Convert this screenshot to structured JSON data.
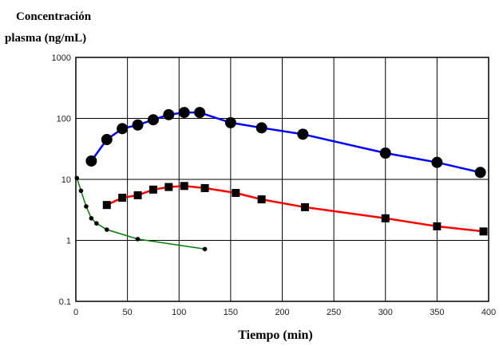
{
  "chart_data": {
    "type": "line",
    "title_line1": "Concentración",
    "title_line2": "plasma (ng/mL)",
    "xlabel": "Tiempo (min)",
    "ylabel": "Concentración plasma (ng/mL)",
    "xlim": [
      0,
      400
    ],
    "ylim": [
      0.1,
      1000
    ],
    "yscale": "log",
    "grid": true,
    "x_ticks": [
      0,
      50,
      100,
      150,
      200,
      250,
      300,
      350,
      400
    ],
    "x_tick_labels": [
      "0",
      "50",
      "100",
      "150",
      "200",
      "250",
      "300",
      "350",
      "400"
    ],
    "y_ticks": [
      0.1,
      1,
      10,
      100,
      1000
    ],
    "y_tick_labels": [
      "0.1",
      "1",
      "10",
      "100",
      "1000"
    ],
    "series": [
      {
        "color": "#0000ff",
        "marker": "circle",
        "x": [
          15,
          30,
          45,
          60,
          75,
          90,
          105,
          120,
          150,
          180,
          220,
          300,
          350,
          392
        ],
        "y": [
          20,
          45,
          68,
          78,
          95,
          115,
          125,
          125,
          85,
          70,
          55,
          27,
          19,
          13
        ]
      },
      {
        "color": "#ff0000",
        "marker": "square",
        "x": [
          30,
          45,
          60,
          75,
          90,
          105,
          125,
          155,
          180,
          222,
          300,
          350,
          395
        ],
        "y": [
          3.8,
          5.0,
          5.5,
          6.8,
          7.5,
          7.8,
          7.2,
          6.0,
          4.7,
          3.5,
          2.3,
          1.7,
          1.4
        ]
      },
      {
        "color": "#008000",
        "marker": "dot",
        "x": [
          1,
          5,
          10,
          15,
          20,
          30,
          60,
          125
        ],
        "y": [
          10.5,
          6.5,
          3.6,
          2.3,
          1.9,
          1.5,
          1.05,
          0.72
        ]
      }
    ]
  }
}
